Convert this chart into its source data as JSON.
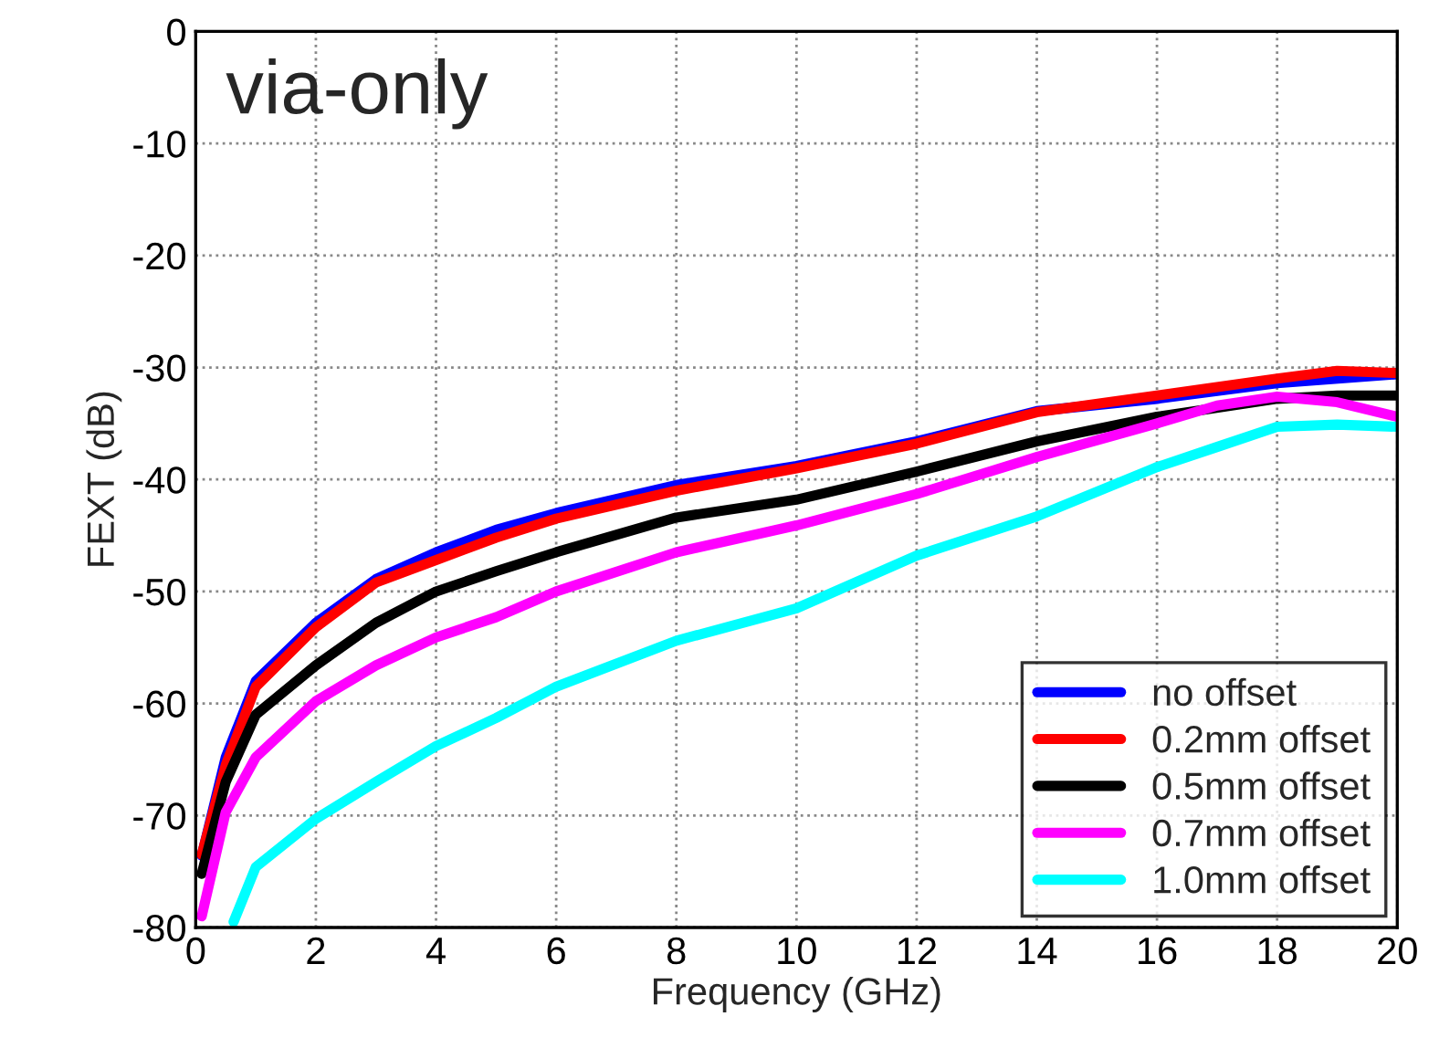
{
  "chart_data": {
    "type": "line",
    "xlabel": "Frequency (GHz)",
    "ylabel": "FEXT (dB)",
    "annotations": [
      "via-only"
    ],
    "xlim": [
      0,
      20
    ],
    "ylim": [
      -80,
      0
    ],
    "xticks": [
      0,
      2,
      4,
      6,
      8,
      10,
      12,
      14,
      16,
      18,
      20
    ],
    "yticks": [
      -80,
      -70,
      -60,
      -50,
      -40,
      -30,
      -20,
      -10,
      0
    ],
    "grid": true,
    "legend": "bottom right",
    "marker": "none",
    "line_style": "solid",
    "series": [
      {
        "name": "no offset",
        "color": "#0000ff",
        "x": [
          0.1,
          0.5,
          1,
          2,
          3,
          4,
          5,
          6,
          8,
          10,
          12,
          14,
          16,
          18,
          20
        ],
        "values": [
          -73.6,
          -64.8,
          -58,
          -52.8,
          -48.9,
          -46.5,
          -44.5,
          -43,
          -40.5,
          -38.8,
          -36.6,
          -33.9,
          -32.8,
          -31.4,
          -30.6
        ]
      },
      {
        "name": "0.2mm offset",
        "color": "#ff0000",
        "x": [
          0.1,
          0.5,
          1,
          2,
          3,
          4,
          5,
          6,
          8,
          10,
          12,
          14,
          16,
          18,
          19,
          20
        ],
        "values": [
          -73.5,
          -65.5,
          -58.5,
          -53.2,
          -49.2,
          -47.2,
          -45.2,
          -43.5,
          -41,
          -39,
          -36.8,
          -34,
          -32.5,
          -31,
          -30.3,
          -30.5
        ]
      },
      {
        "name": "0.5mm offset",
        "color": "#000000",
        "x": [
          0.1,
          0.5,
          1,
          2,
          3,
          4,
          5,
          6,
          8,
          10,
          12,
          14,
          16,
          18,
          19,
          20
        ],
        "values": [
          -75.2,
          -67,
          -61,
          -56.6,
          -52.8,
          -50,
          -48.2,
          -46.5,
          -43.4,
          -41.8,
          -39.3,
          -36.6,
          -34.4,
          -32.8,
          -32.5,
          -32.5
        ]
      },
      {
        "name": "0.7mm offset",
        "color": "#ff00ff",
        "x": [
          0.1,
          0.5,
          1,
          2,
          3,
          4,
          5,
          6,
          8,
          10,
          12,
          14,
          16,
          17,
          18,
          19,
          20
        ],
        "values": [
          -79,
          -69.7,
          -64.8,
          -59.8,
          -56.6,
          -54.1,
          -52.3,
          -50,
          -46.5,
          -44.1,
          -41.3,
          -38,
          -35,
          -33.4,
          -32.6,
          -33.1,
          -34.4
        ]
      },
      {
        "name": "1.0mm offset",
        "color": "#00ffff",
        "x": [
          0.63,
          1,
          2,
          3,
          4,
          5,
          6,
          8,
          10,
          12,
          14,
          16,
          17,
          18,
          19,
          20
        ],
        "values": [
          -79.5,
          -74.6,
          -70.3,
          -67,
          -63.8,
          -61.3,
          -58.5,
          -54.4,
          -51.5,
          -46.8,
          -43.3,
          -38.9,
          -37.1,
          -35.3,
          -35.1,
          -35.3
        ]
      }
    ]
  }
}
